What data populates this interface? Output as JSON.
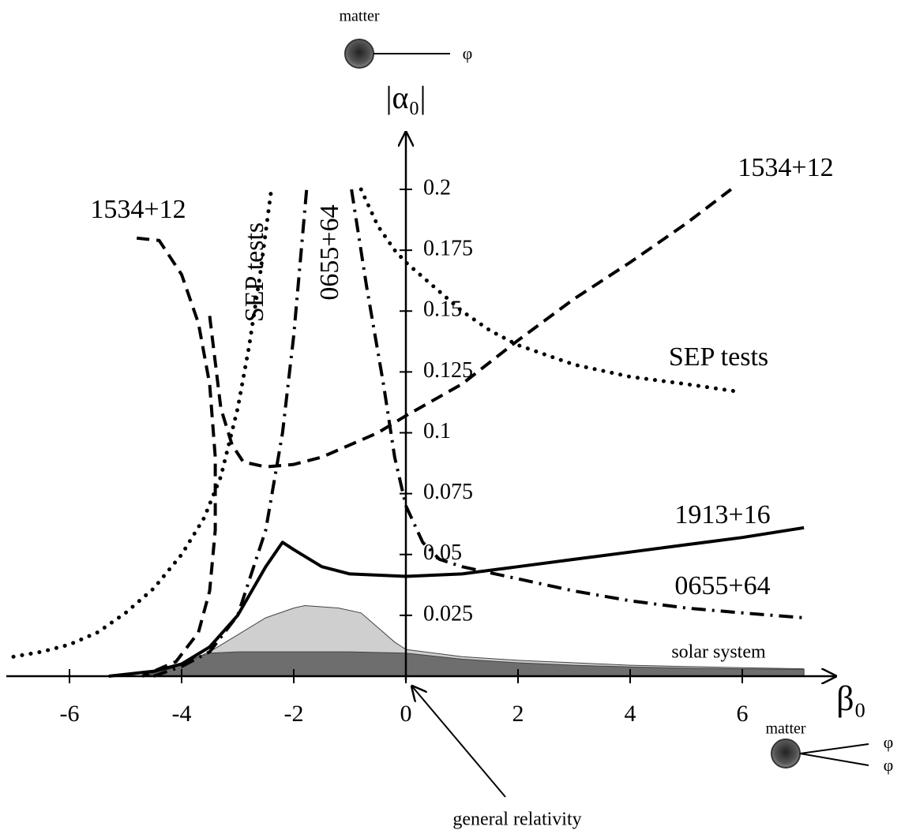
{
  "chart_data": {
    "type": "line",
    "x_label": "β₀",
    "y_label": "|α₀|",
    "xlim": [
      -7.2,
      7.6
    ],
    "ylim": [
      0,
      0.22
    ],
    "xticks": [
      -6,
      -4,
      -2,
      0,
      2,
      4,
      6
    ],
    "yticks": [
      0.025,
      0.05,
      0.075,
      0.1,
      0.125,
      0.15,
      0.175,
      0.2
    ],
    "series": [
      {
        "name": "1913+16",
        "color": "#000000",
        "dash": "solid",
        "x": [
          -5.3,
          -4.5,
          -4,
          -3.5,
          -3,
          -2.5,
          -2.2,
          -2,
          -1.5,
          -1,
          0,
          1,
          2,
          3,
          4,
          5,
          6,
          7.1
        ],
        "y": [
          0,
          0.002,
          0.005,
          0.012,
          0.025,
          0.045,
          0.055,
          0.052,
          0.045,
          0.042,
          0.041,
          0.042,
          0.045,
          0.048,
          0.051,
          0.054,
          0.057,
          0.061
        ]
      },
      {
        "name": "0655+64",
        "color": "#000000",
        "dash": "dashdot",
        "x": [
          -4.5,
          -4,
          -3.5,
          -3,
          -2.5,
          -2.2,
          -2,
          -1.77,
          null,
          -0.97,
          -0.7,
          -0.4,
          -0.2,
          0,
          0.3,
          0.6,
          1,
          2,
          3,
          4,
          5,
          6,
          7.1
        ],
        "y": [
          0,
          0.004,
          0.01,
          0.025,
          0.06,
          0.1,
          0.14,
          0.2,
          null,
          0.2,
          0.16,
          0.12,
          0.09,
          0.07,
          0.055,
          0.048,
          0.045,
          0.04,
          0.035,
          0.031,
          0.028,
          0.026,
          0.024
        ]
      },
      {
        "name": "1534+12",
        "color": "#000000",
        "dash": "dashed",
        "x": [
          -4.8,
          -4.4,
          -4.0,
          -3.7,
          -3.5,
          -3.4,
          -3.4,
          -3.5,
          -3.7,
          -4.1,
          -4.7,
          null,
          -3.5,
          -3.3,
          -3.1,
          -2.9,
          -2.5,
          -2,
          -1.5,
          -1,
          -0.5,
          0,
          1,
          2,
          3,
          4,
          5,
          5.8
        ],
        "y": [
          0.18,
          0.179,
          0.165,
          0.145,
          0.12,
          0.09,
          0.06,
          0.035,
          0.018,
          0.006,
          0,
          null,
          0.148,
          0.11,
          0.095,
          0.088,
          0.086,
          0.087,
          0.09,
          0.095,
          0.1,
          0.107,
          0.12,
          0.138,
          0.155,
          0.17,
          0.186,
          0.2
        ]
      },
      {
        "name": "SEP tests",
        "color": "#000000",
        "dash": "dotted",
        "x": [
          -7,
          -6.5,
          -6,
          -5.5,
          -5,
          -4.5,
          -4,
          -3.6,
          -3.3,
          -3,
          -2.8,
          -2.6,
          -2.4,
          null,
          -0.8,
          -0.5,
          -0.2,
          0,
          0.5,
          1,
          1.5,
          2,
          3,
          4,
          5,
          5.9
        ],
        "y": [
          0.008,
          0.01,
          0.013,
          0.018,
          0.026,
          0.036,
          0.05,
          0.065,
          0.082,
          0.11,
          0.135,
          0.165,
          0.2,
          null,
          0.2,
          0.185,
          0.175,
          0.17,
          0.16,
          0.15,
          0.142,
          0.136,
          0.128,
          0.123,
          0.12,
          0.117
        ]
      }
    ],
    "regions": [
      {
        "color": "#cfcfcf",
        "x": [
          -4.7,
          -4,
          -3.5,
          -3,
          -2.5,
          -2,
          -1.8,
          -1.2,
          -0.8,
          -0.5,
          -0.2,
          0,
          1,
          2,
          3,
          4,
          5,
          6,
          7.1,
          7.1,
          -4.7
        ],
        "y": [
          0,
          0.005,
          0.01,
          0.017,
          0.024,
          0.028,
          0.029,
          0.028,
          0.026,
          0.02,
          0.014,
          0.011,
          0.008,
          0.0065,
          0.0055,
          0.0045,
          0.004,
          0.0035,
          0.003,
          0,
          0
        ]
      },
      {
        "color": "#6e6e6e",
        "x": [
          -4.7,
          -4.2,
          -3.8,
          -3.5,
          -3,
          -2,
          -1,
          0,
          1,
          2,
          3,
          4,
          5,
          6,
          7.1,
          7.1,
          -4.7
        ],
        "y": [
          0,
          0.003,
          0.007,
          0.0095,
          0.01,
          0.01,
          0.01,
          0.0095,
          0.007,
          0.0055,
          0.0045,
          0.0038,
          0.0033,
          0.003,
          0.0028,
          0,
          0
        ]
      }
    ],
    "annotations": [
      "1534+12",
      "1534+12",
      "SEP tests",
      "SEP tests",
      "0655+64",
      "0655+64",
      "1913+16",
      "solar system",
      "general relativity",
      "matter",
      "φ",
      "matter",
      "φ",
      "φ"
    ]
  }
}
